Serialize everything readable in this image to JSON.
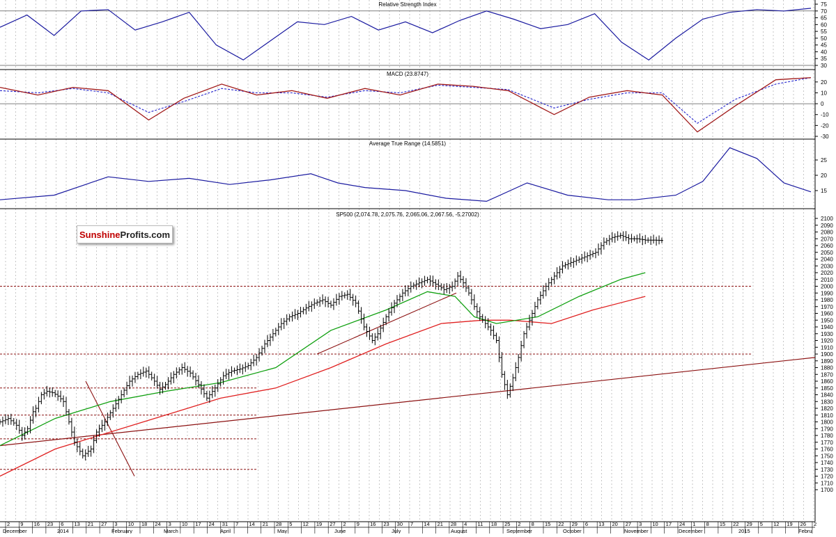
{
  "logo": {
    "part1": "Sunshine",
    "part2": "Profits.com"
  },
  "colors": {
    "rsi": "#1a1aa0",
    "macd": "#a01818",
    "signal": "#2222cc",
    "atr": "#1a1aa0",
    "sma50": "#10a010",
    "sma200": "#e02020",
    "trend": "#8b1010",
    "level": "#8b1010",
    "price": "#000000",
    "grid": "#b8b8b8"
  },
  "chart_data": [
    {
      "type": "line",
      "title": "Relative Strength Index",
      "ylim": [
        30,
        75
      ],
      "yticks": [
        "30",
        "35",
        "40",
        "45",
        "50",
        "55",
        "60",
        "65",
        "70",
        "75"
      ],
      "reference_lines": [
        70,
        30
      ],
      "x": [
        0,
        10,
        20,
        30,
        40,
        50,
        60,
        70,
        80,
        90,
        100,
        110,
        120,
        130,
        140,
        150,
        160,
        170,
        180,
        190,
        200,
        210,
        220,
        230,
        240,
        250,
        260,
        270,
        280,
        290,
        300
      ],
      "values": [
        58,
        67,
        52,
        70,
        71,
        56,
        62,
        69,
        45,
        34,
        48,
        62,
        60,
        66,
        56,
        62,
        54,
        63,
        70,
        64,
        57,
        60,
        68,
        47,
        34,
        50,
        64,
        69,
        71,
        70,
        72
      ]
    },
    {
      "type": "line",
      "title": "MACD (23.8747)",
      "ylim": [
        -30,
        25
      ],
      "yticks": [
        "-30",
        "-20",
        "-10",
        "0",
        "10",
        "20"
      ],
      "series": [
        {
          "values": [
            15,
            8,
            15,
            12,
            -15,
            5,
            18,
            8,
            12,
            5,
            14,
            8,
            18,
            16,
            12,
            -10,
            6,
            12,
            8,
            -26,
            -2,
            22,
            24
          ]
        },
        {
          "values": [
            12,
            10,
            14,
            10,
            -8,
            2,
            14,
            10,
            10,
            6,
            12,
            10,
            17,
            15,
            13,
            -4,
            4,
            10,
            10,
            -18,
            4,
            18,
            24
          ]
        }
      ],
      "x": [
        0,
        14,
        27,
        40,
        55,
        68,
        82,
        95,
        108,
        121,
        135,
        148,
        162,
        175,
        188,
        205,
        218,
        232,
        245,
        258,
        272,
        287,
        300
      ]
    },
    {
      "type": "line",
      "title": "Average True Range (14.5851)",
      "ylim": [
        10,
        30
      ],
      "yticks": [
        "15",
        "20",
        "25"
      ],
      "x": [
        0,
        20,
        40,
        55,
        70,
        85,
        100,
        115,
        125,
        135,
        150,
        165,
        180,
        195,
        210,
        225,
        235,
        250,
        260,
        270,
        280,
        290,
        300
      ],
      "values": [
        12,
        13.5,
        19.5,
        18,
        19,
        17,
        18.5,
        20.5,
        17.5,
        16,
        15,
        12.5,
        11.5,
        17.5,
        13.5,
        12,
        12,
        13.5,
        18,
        29,
        25.5,
        17.5,
        14.6
      ]
    },
    {
      "type": "bar",
      "title": "SP500 (2,074.78, 2,075.76, 2,065.06, 2,067.56, -5.27002)",
      "ylim": [
        1700,
        2100
      ],
      "yticks": [
        "1700",
        "1710",
        "1720",
        "1730",
        "1740",
        "1750",
        "1760",
        "1770",
        "1780",
        "1790",
        "1800",
        "1810",
        "1820",
        "1830",
        "1840",
        "1850",
        "1860",
        "1870",
        "1880",
        "1890",
        "1900",
        "1910",
        "1920",
        "1930",
        "1940",
        "1950",
        "1960",
        "1970",
        "1980",
        "1990",
        "2000",
        "2010",
        "2020",
        "2030",
        "2040",
        "2050",
        "2060",
        "2070",
        "2080",
        "2090",
        "2100"
      ],
      "close_points": {
        "x": [
          0,
          3,
          6,
          8,
          10,
          12,
          13,
          15,
          17,
          19,
          21,
          23,
          25,
          27,
          30,
          33,
          35,
          38,
          41,
          44,
          47,
          50,
          53,
          56,
          58,
          60,
          63,
          66,
          69,
          72,
          75,
          78,
          81,
          84,
          87,
          90,
          93,
          96,
          99,
          102,
          105,
          108,
          111,
          114,
          117,
          120,
          123,
          126,
          129,
          132,
          135,
          137,
          140,
          143,
          146,
          149,
          152,
          155,
          158,
          161,
          164,
          166,
          168,
          170,
          172,
          174,
          176,
          178,
          180,
          182,
          184,
          186,
          188,
          190,
          192,
          195,
          198,
          201,
          204,
          207,
          210,
          213,
          216,
          219,
          222,
          225,
          228,
          231,
          234,
          237,
          240
        ],
        "values": [
          1800,
          1805,
          1795,
          1780,
          1790,
          1815,
          1820,
          1840,
          1845,
          1843,
          1838,
          1830,
          1800,
          1770,
          1750,
          1760,
          1785,
          1800,
          1820,
          1840,
          1860,
          1870,
          1875,
          1860,
          1848,
          1855,
          1870,
          1880,
          1872,
          1855,
          1835,
          1850,
          1868,
          1875,
          1878,
          1883,
          1895,
          1915,
          1930,
          1945,
          1955,
          1960,
          1968,
          1975,
          1980,
          1972,
          1985,
          1988,
          1975,
          1940,
          1920,
          1930,
          1955,
          1975,
          1990,
          2000,
          2005,
          2010,
          2003,
          1995,
          2000,
          2015,
          2005,
          1990,
          1970,
          1955,
          1945,
          1935,
          1920,
          1870,
          1840,
          1865,
          1895,
          1930,
          1950,
          1980,
          2000,
          2015,
          2030,
          2035,
          2040,
          2045,
          2050,
          2065,
          2072,
          2075,
          2070,
          2070,
          2068,
          2068,
          2067.56
        ]
      },
      "sma50": {
        "x": [
          0,
          20,
          40,
          60,
          80,
          100,
          120,
          140,
          155,
          165,
          172,
          180,
          195,
          210,
          225,
          234
        ],
        "values": [
          1765,
          1805,
          1830,
          1845,
          1858,
          1880,
          1935,
          1965,
          1992,
          1985,
          1955,
          1945,
          1955,
          1985,
          2010,
          2020
        ]
      },
      "sma200": {
        "x": [
          0,
          20,
          40,
          60,
          80,
          100,
          120,
          140,
          160,
          175,
          185,
          200,
          215,
          234
        ],
        "values": [
          1720,
          1760,
          1785,
          1810,
          1835,
          1850,
          1880,
          1915,
          1945,
          1950,
          1950,
          1945,
          1965,
          1985
        ]
      },
      "horizontal_levels": [
        2000,
        1900,
        1850,
        1810,
        1775,
        1730
      ],
      "x_tick_labels": [
        "2",
        "9",
        "16",
        "23",
        "6",
        "13",
        "21",
        "27",
        "3",
        "10",
        "18",
        "24",
        "3",
        "10",
        "17",
        "24",
        "31",
        "7",
        "14",
        "21",
        "28",
        "5",
        "12",
        "19",
        "27",
        "2",
        "9",
        "16",
        "23",
        "30",
        "7",
        "14",
        "21",
        "28",
        "4",
        "11",
        "18",
        "25",
        "2",
        "8",
        "15",
        "22",
        "29",
        "6",
        "13",
        "20",
        "27",
        "3",
        "10",
        "17",
        "24",
        "1",
        "8",
        "15",
        "22",
        "29",
        "5",
        "12",
        "19",
        "26",
        "2"
      ],
      "x_month_labels": [
        "December",
        "2014",
        "February",
        "March",
        "April",
        "May",
        "June",
        "July",
        "August",
        "September",
        "October",
        "November",
        "December",
        "2015",
        "Febru"
      ]
    }
  ]
}
